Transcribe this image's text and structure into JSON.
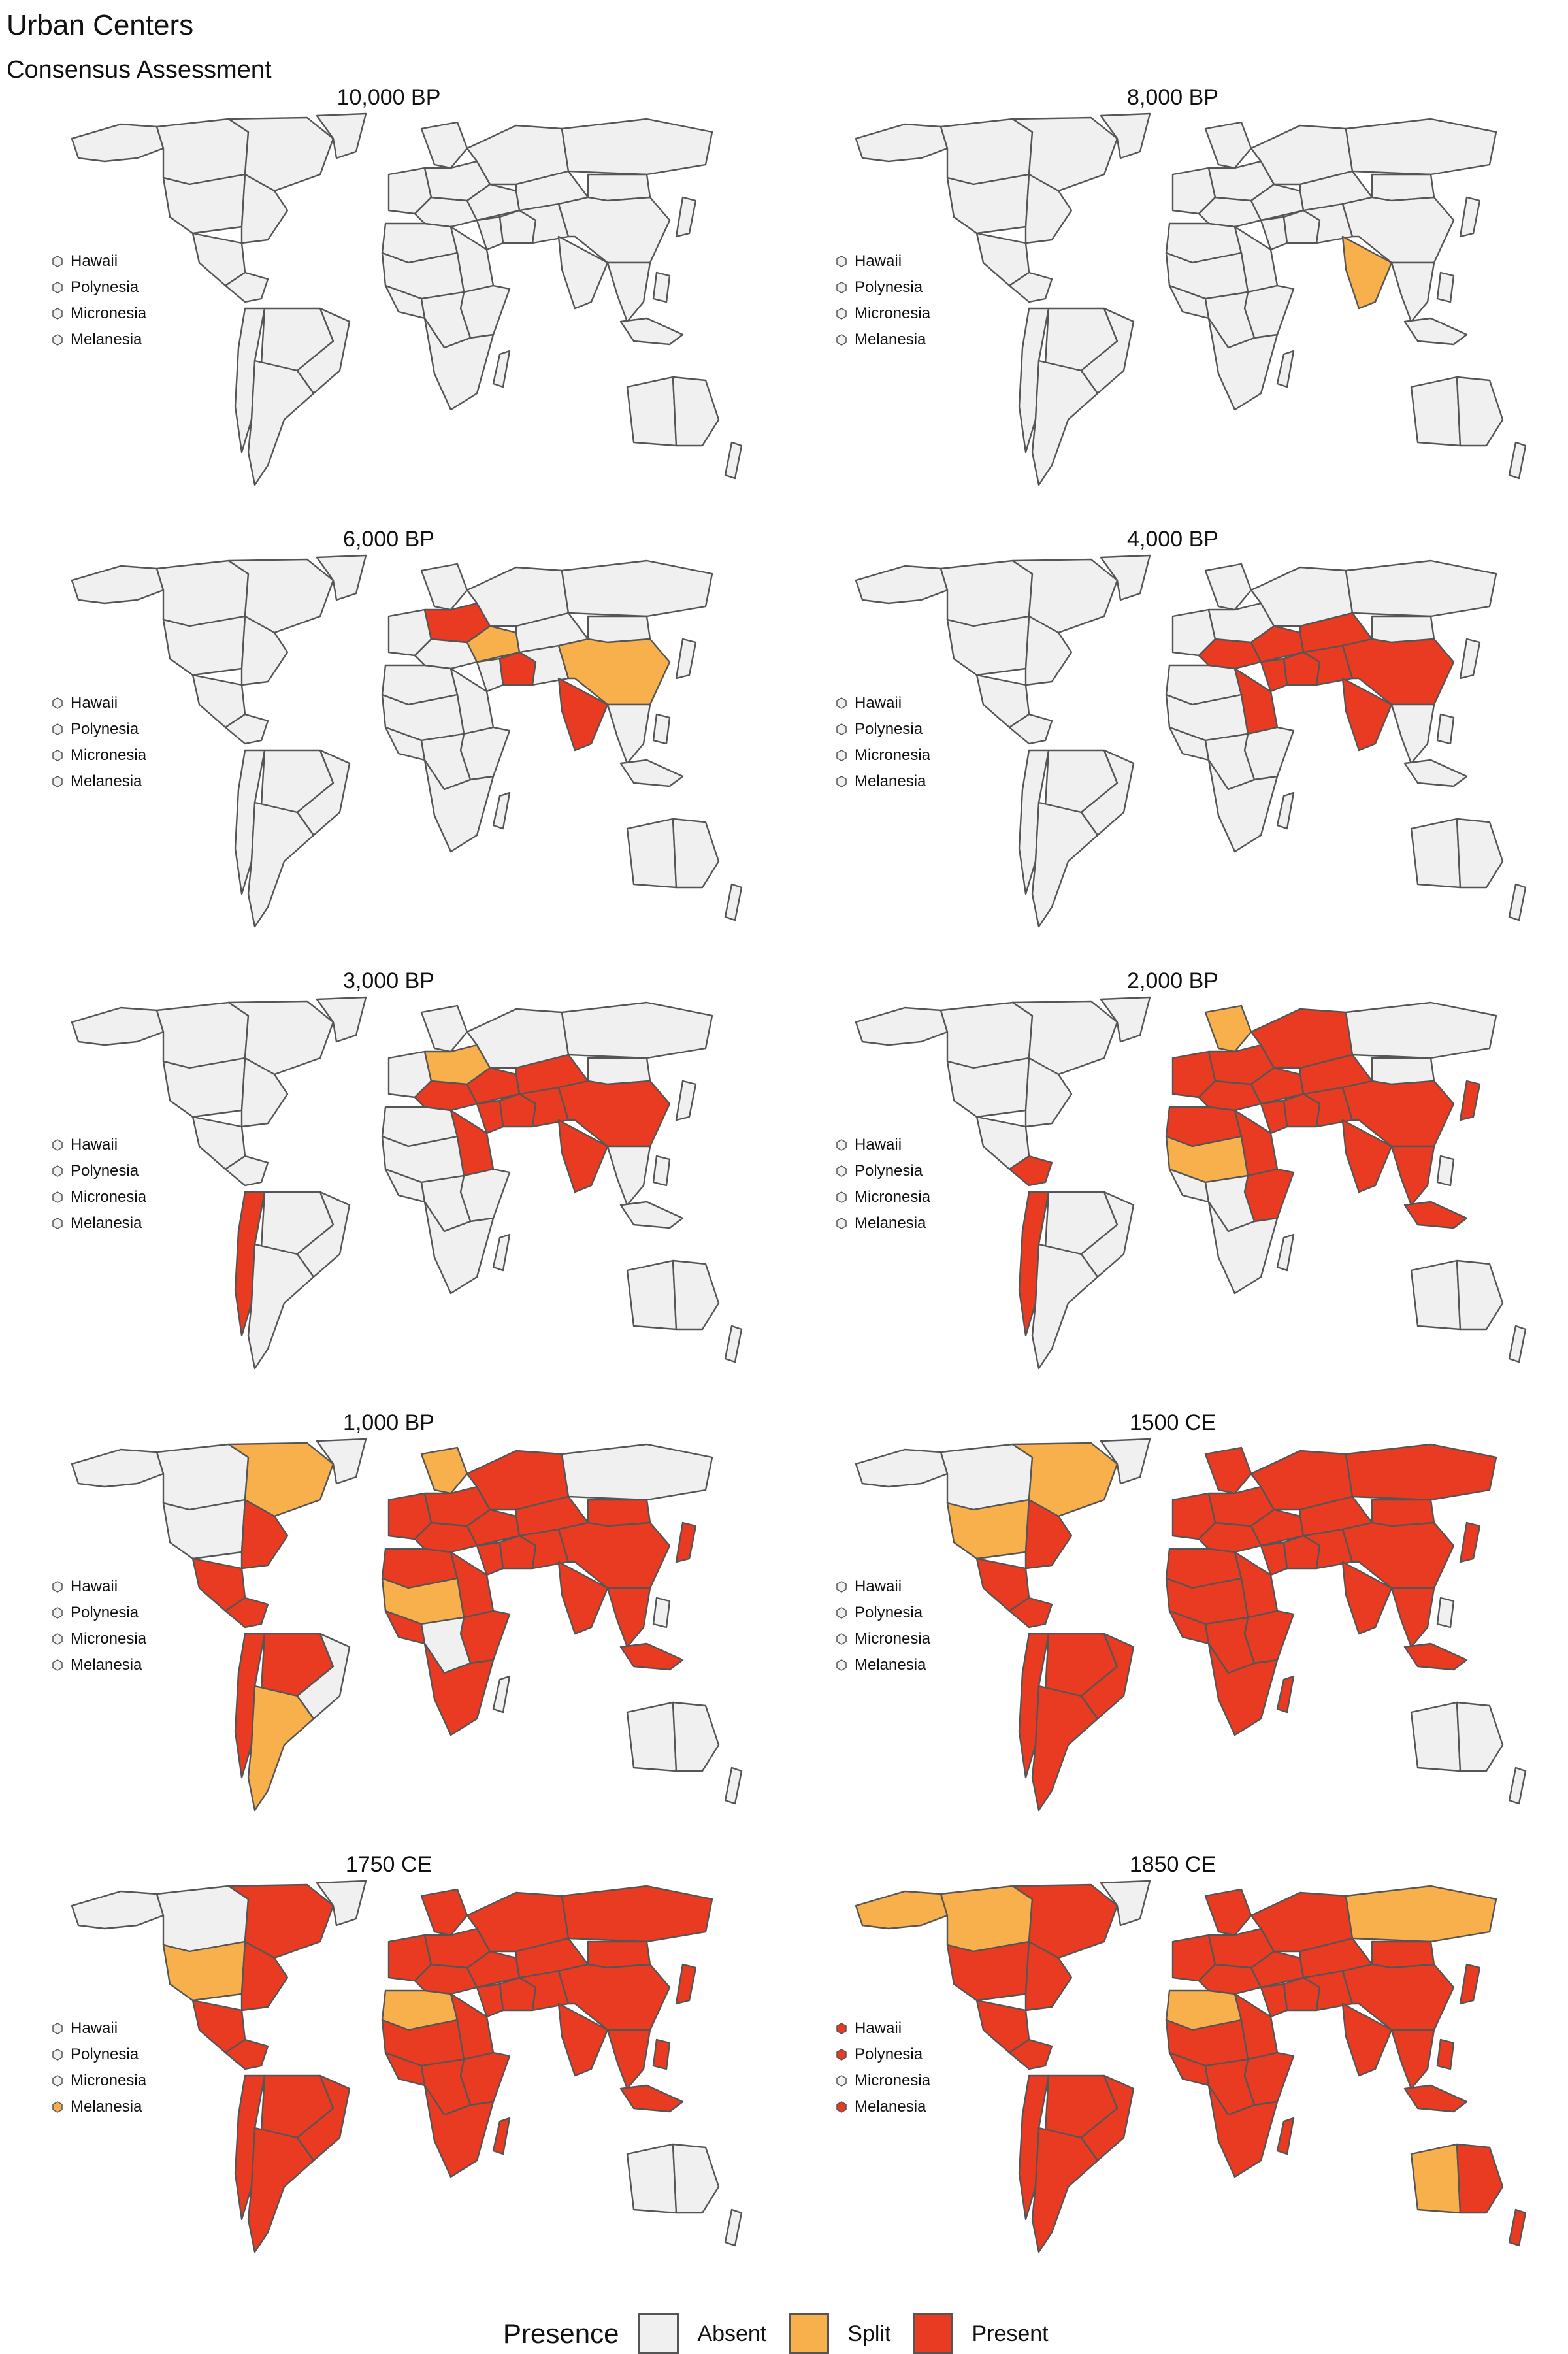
{
  "title": "Urban Centers",
  "subtitle": "Consensus Assessment",
  "colors": {
    "absent": "#f0f0f0",
    "split": "#f7b04c",
    "present": "#e83b22",
    "border": "#555555"
  },
  "legend": {
    "title": "Presence",
    "items": [
      {
        "label": "Absent",
        "status": "absent"
      },
      {
        "label": "Split",
        "status": "split"
      },
      {
        "label": "Present",
        "status": "present"
      }
    ]
  },
  "island_labels": [
    "Hawaii",
    "Polynesia",
    "Micronesia",
    "Melanesia"
  ],
  "panels": [
    {
      "title": "10,000 BP",
      "islands": [
        "absent",
        "absent",
        "absent",
        "absent"
      ],
      "regions": {}
    },
    {
      "title": "8,000 BP",
      "islands": [
        "absent",
        "absent",
        "absent",
        "absent"
      ],
      "regions": {
        "south_asia": "split"
      }
    },
    {
      "title": "6,000 BP",
      "islands": [
        "absent",
        "absent",
        "absent",
        "absent"
      ],
      "regions": {
        "europe_east": "present",
        "anatolia": "split",
        "mesopotamia": "present",
        "south_asia": "present",
        "china": "split"
      }
    },
    {
      "title": "4,000 BP",
      "islands": [
        "absent",
        "absent",
        "absent",
        "absent"
      ],
      "regions": {
        "europe_south": "present",
        "anatolia": "present",
        "levant": "present",
        "egypt_sudan": "present",
        "mesopotamia": "present",
        "persia": "present",
        "central_asia": "present",
        "south_asia": "present",
        "china": "present"
      }
    },
    {
      "title": "3,000 BP",
      "islands": [
        "absent",
        "absent",
        "absent",
        "absent"
      ],
      "regions": {
        "europe_south": "present",
        "europe_east": "split",
        "anatolia": "present",
        "levant": "present",
        "egypt_sudan": "present",
        "mesopotamia": "present",
        "persia": "present",
        "central_asia": "present",
        "south_asia": "present",
        "china": "present",
        "andes": "present"
      }
    },
    {
      "title": "2,000 BP",
      "islands": [
        "absent",
        "absent",
        "absent",
        "absent"
      ],
      "regions": {
        "europe_west": "present",
        "europe_south": "present",
        "europe_east": "present",
        "scandinavia": "split",
        "russia": "present",
        "anatolia": "present",
        "levant": "present",
        "egypt_sudan": "present",
        "north_africa": "present",
        "sahel": "split",
        "east_africa": "present",
        "mesopotamia": "present",
        "persia": "present",
        "central_asia": "present",
        "south_asia": "present",
        "southeast_asia": "present",
        "indonesia": "present",
        "china": "present",
        "japan": "present",
        "mesoamerica": "present",
        "andes": "present"
      }
    },
    {
      "title": "1,000 BP",
      "islands": [
        "absent",
        "absent",
        "absent",
        "absent"
      ],
      "regions": {
        "europe_west": "present",
        "europe_south": "present",
        "europe_east": "present",
        "scandinavia": "split",
        "russia": "present",
        "anatolia": "present",
        "levant": "present",
        "egypt_sudan": "present",
        "north_africa": "present",
        "sahel": "split",
        "west_africa": "present",
        "east_africa": "present",
        "southern_africa": "present",
        "mesopotamia": "present",
        "persia": "present",
        "central_asia": "present",
        "south_asia": "present",
        "southeast_asia": "present",
        "indonesia": "present",
        "china": "present",
        "japan": "present",
        "mongolia": "present",
        "us_east": "present",
        "canada_east": "split",
        "mexico": "present",
        "mesoamerica": "present",
        "andes": "present",
        "amazon": "present",
        "argentina": "split"
      }
    },
    {
      "title": "1500 CE",
      "islands": [
        "absent",
        "absent",
        "absent",
        "absent"
      ],
      "regions": {
        "europe_west": "present",
        "europe_south": "present",
        "europe_east": "present",
        "scandinavia": "present",
        "russia": "present",
        "siberia": "present",
        "anatolia": "present",
        "levant": "present",
        "egypt_sudan": "present",
        "north_africa": "present",
        "sahel": "present",
        "west_africa": "present",
        "central_africa": "present",
        "east_africa": "present",
        "southern_africa": "present",
        "madagascar": "present",
        "mesopotamia": "present",
        "persia": "present",
        "central_asia": "present",
        "south_asia": "present",
        "southeast_asia": "present",
        "indonesia": "present",
        "china": "present",
        "japan": "present",
        "mongolia": "present",
        "us_east": "present",
        "us_west": "split",
        "canada_east": "split",
        "mexico": "present",
        "mesoamerica": "present",
        "andes": "present",
        "amazon": "present",
        "brazil_east": "present",
        "argentina": "present"
      }
    },
    {
      "title": "1750 CE",
      "islands": [
        "absent",
        "absent",
        "absent",
        "split"
      ],
      "regions": {
        "europe_west": "present",
        "europe_south": "present",
        "europe_east": "present",
        "scandinavia": "present",
        "russia": "present",
        "siberia": "present",
        "anatolia": "present",
        "levant": "present",
        "egypt_sudan": "present",
        "north_africa": "split",
        "sahel": "present",
        "west_africa": "present",
        "central_africa": "present",
        "east_africa": "present",
        "southern_africa": "present",
        "madagascar": "present",
        "mesopotamia": "present",
        "persia": "present",
        "central_asia": "present",
        "south_asia": "present",
        "southeast_asia": "present",
        "indonesia": "present",
        "philippines": "present",
        "china": "present",
        "japan": "present",
        "mongolia": "present",
        "us_east": "present",
        "us_west": "split",
        "canada_east": "present",
        "mexico": "present",
        "mesoamerica": "present",
        "andes": "present",
        "amazon": "present",
        "brazil_east": "present",
        "argentina": "present"
      }
    },
    {
      "title": "1850 CE",
      "islands": [
        "present",
        "present",
        "absent",
        "present"
      ],
      "regions": {
        "europe_west": "present",
        "europe_south": "present",
        "europe_east": "present",
        "scandinavia": "present",
        "russia": "present",
        "siberia": "split",
        "anatolia": "present",
        "levant": "present",
        "egypt_sudan": "present",
        "north_africa": "split",
        "sahel": "present",
        "west_africa": "present",
        "central_africa": "present",
        "east_africa": "present",
        "southern_africa": "present",
        "madagascar": "present",
        "mesopotamia": "present",
        "persia": "present",
        "central_asia": "present",
        "south_asia": "present",
        "southeast_asia": "present",
        "indonesia": "present",
        "philippines": "present",
        "china": "present",
        "japan": "present",
        "mongolia": "present",
        "us_east": "present",
        "us_west": "present",
        "canada_east": "present",
        "canada_west": "split",
        "alaska": "split",
        "mexico": "present",
        "mesoamerica": "present",
        "andes": "present",
        "amazon": "present",
        "brazil_east": "present",
        "argentina": "present",
        "australia_east": "present",
        "australia_west": "split",
        "new_zealand": "present"
      }
    }
  ]
}
